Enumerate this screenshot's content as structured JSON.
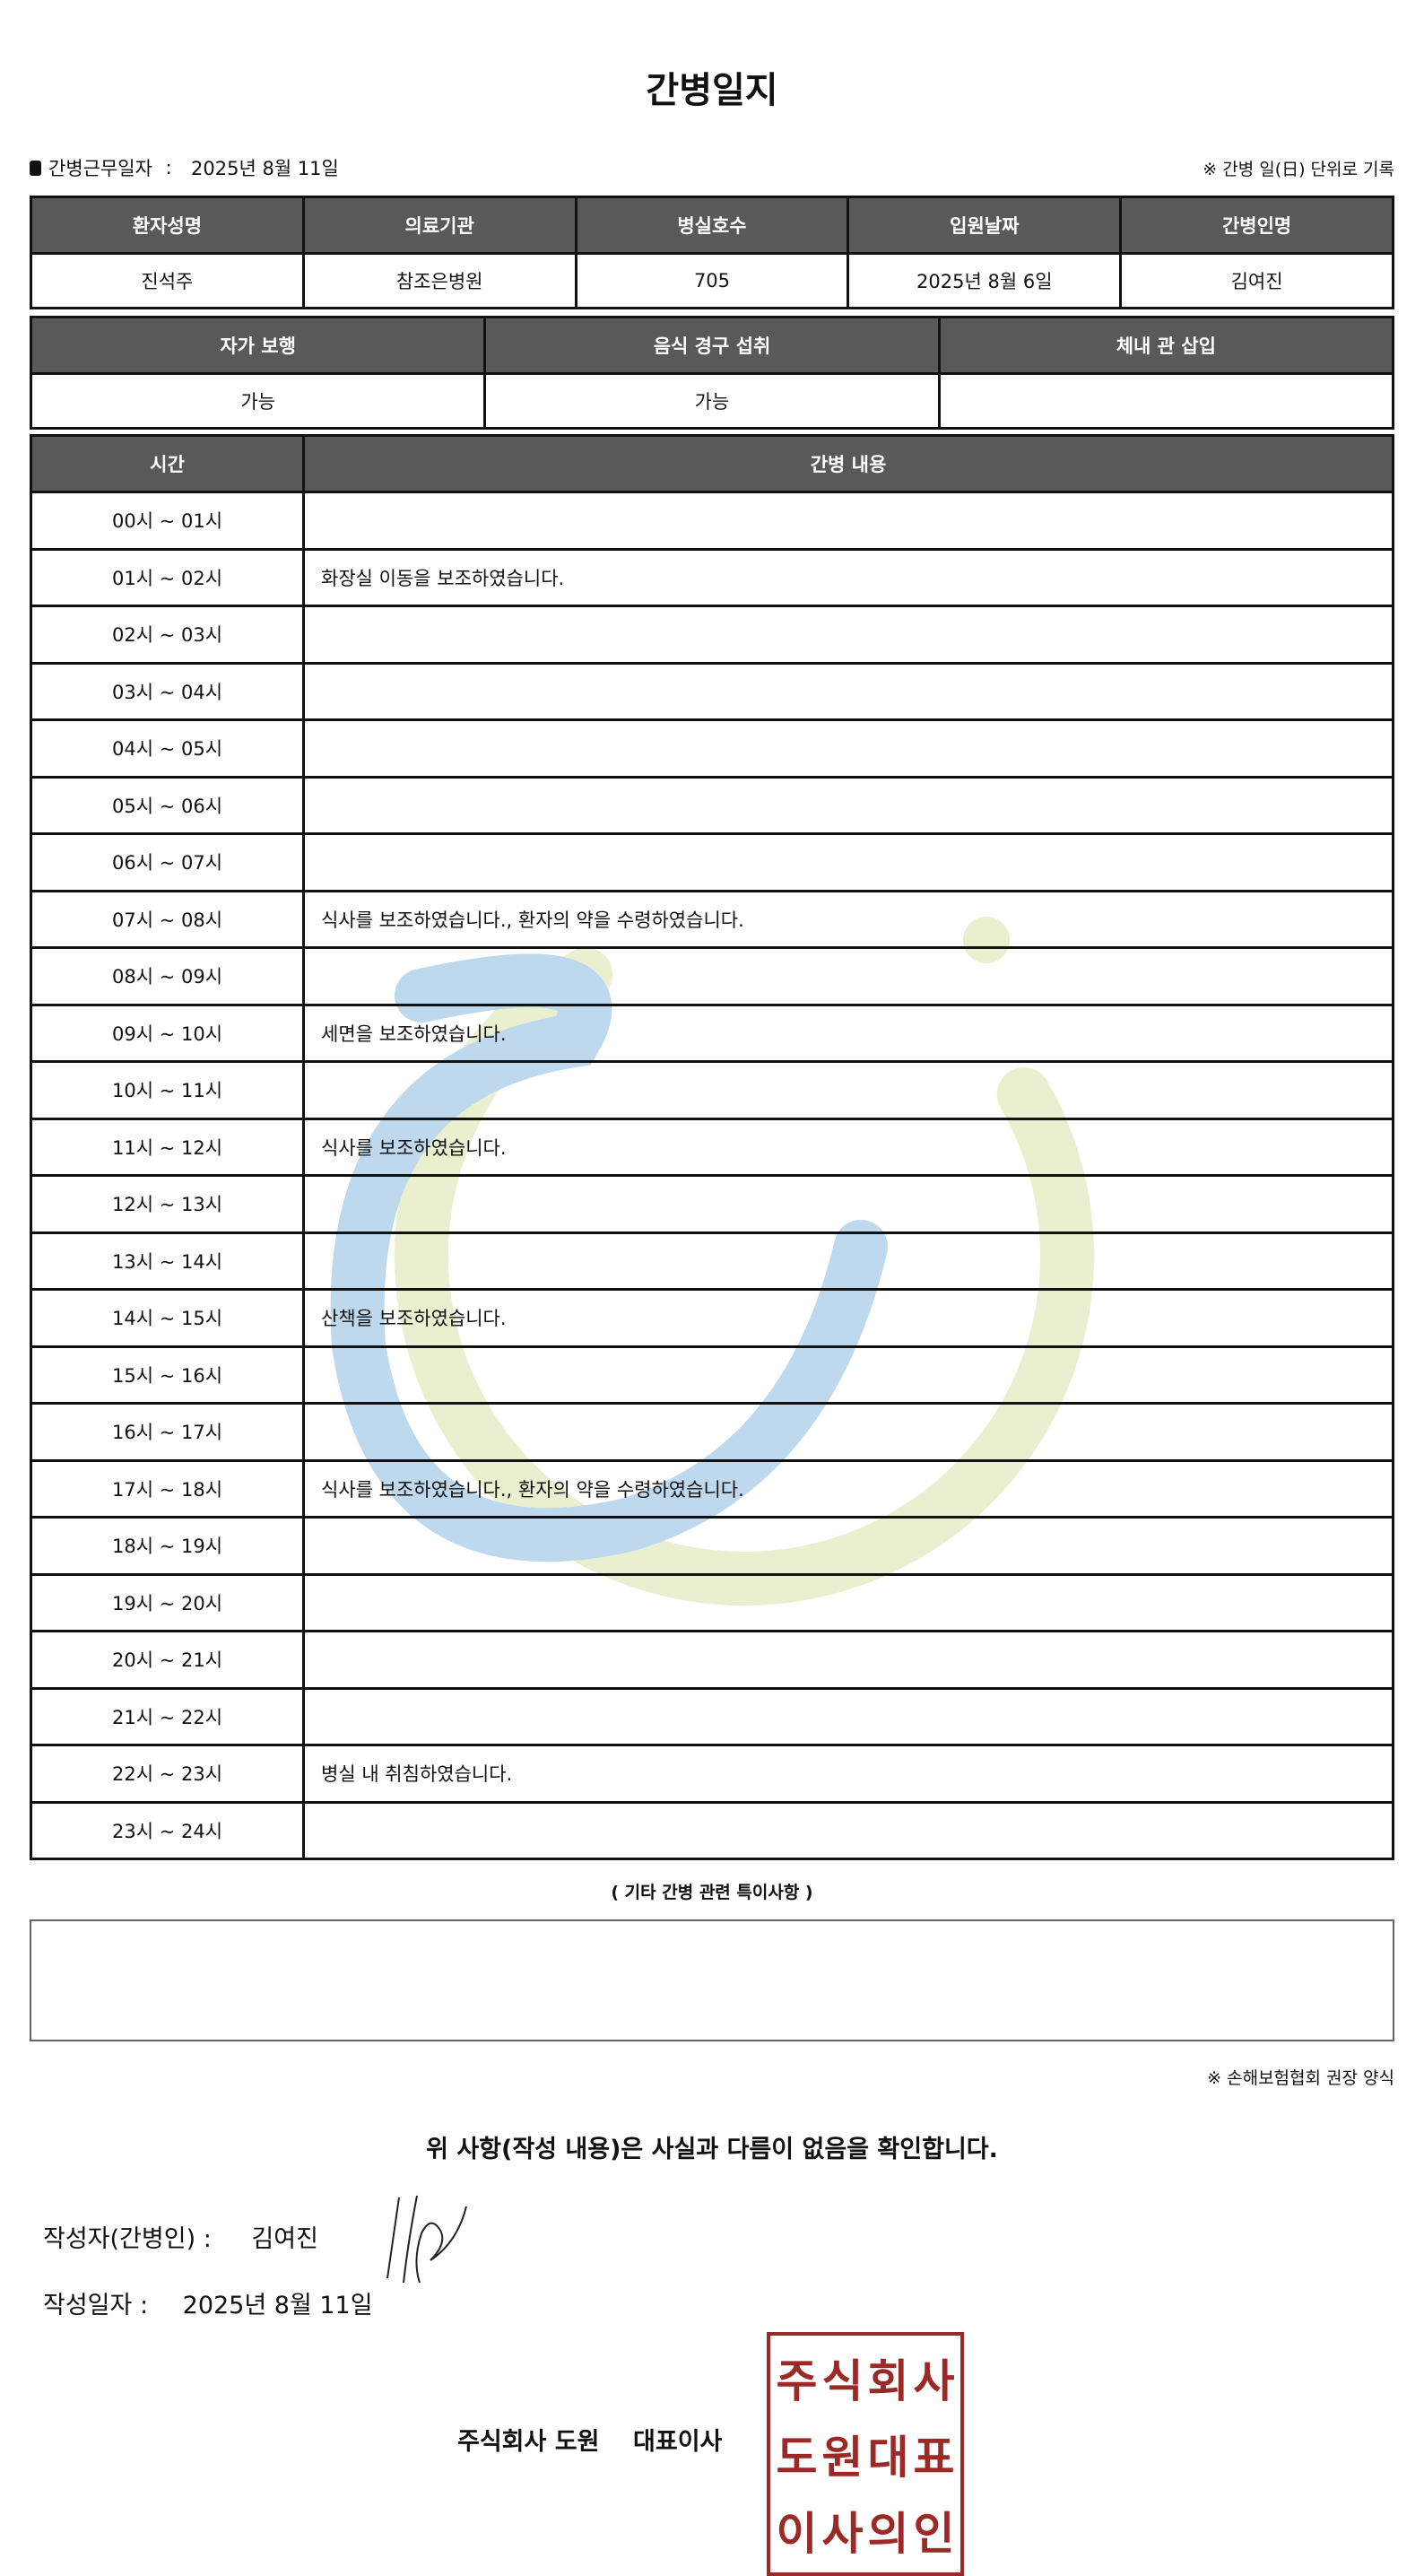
{
  "title": "간병일지",
  "work_date_label": "간병근무일자",
  "work_date": "2025년 8월 11일",
  "record_note": "※ 간병 일(日) 단위로 기록",
  "patient_table": {
    "headers": [
      "환자성명",
      "의료기관",
      "병실호수",
      "입원날짜",
      "간병인명"
    ],
    "values": [
      "진석주",
      "참조은병원",
      "705",
      "2025년 8월 6일",
      "김여진"
    ]
  },
  "status_table": {
    "headers": [
      "자가 보행",
      "음식 경구 섭취",
      "체내 관 삽입"
    ],
    "values": [
      "가능",
      "가능",
      ""
    ]
  },
  "log_table": {
    "headers": [
      "시간",
      "간병 내용"
    ],
    "rows": [
      {
        "time": "00시 ~ 01시",
        "content": ""
      },
      {
        "time": "01시 ~ 02시",
        "content": "화장실 이동을 보조하였습니다."
      },
      {
        "time": "02시 ~ 03시",
        "content": ""
      },
      {
        "time": "03시 ~ 04시",
        "content": ""
      },
      {
        "time": "04시 ~ 05시",
        "content": ""
      },
      {
        "time": "05시 ~ 06시",
        "content": ""
      },
      {
        "time": "06시 ~ 07시",
        "content": ""
      },
      {
        "time": "07시 ~ 08시",
        "content": "식사를 보조하였습니다., 환자의 약을 수령하였습니다."
      },
      {
        "time": "08시 ~ 09시",
        "content": ""
      },
      {
        "time": "09시 ~ 10시",
        "content": "세면을 보조하였습니다."
      },
      {
        "time": "10시 ~ 11시",
        "content": ""
      },
      {
        "time": "11시 ~ 12시",
        "content": "식사를 보조하였습니다."
      },
      {
        "time": "12시 ~ 13시",
        "content": ""
      },
      {
        "time": "13시 ~ 14시",
        "content": ""
      },
      {
        "time": "14시 ~ 15시",
        "content": "산책을 보조하였습니다."
      },
      {
        "time": "15시 ~ 16시",
        "content": ""
      },
      {
        "time": "16시 ~ 17시",
        "content": ""
      },
      {
        "time": "17시 ~ 18시",
        "content": "식사를 보조하였습니다., 환자의 약을 수령하였습니다."
      },
      {
        "time": "18시 ~ 19시",
        "content": ""
      },
      {
        "time": "19시 ~ 20시",
        "content": ""
      },
      {
        "time": "20시 ~ 21시",
        "content": ""
      },
      {
        "time": "21시 ~ 22시",
        "content": ""
      },
      {
        "time": "22시 ~ 23시",
        "content": "병실 내 취침하였습니다."
      },
      {
        "time": "23시 ~ 24시",
        "content": ""
      }
    ]
  },
  "notes_heading": "( 기타 간병 관련 특이사항 )",
  "notes_value": "",
  "reference_note": "※ 손해보험협회 권장 양식",
  "confirm_statement": "위 사항(작성 내용)은 사실과 다름이 없음을 확인합니다.",
  "writer_label": "작성자(간병인) :",
  "writer_name": "김여진",
  "written_date_label": "작성일자 :",
  "written_date": "2025년 8월 11일",
  "company": "주식회사 도원    대표이사",
  "seal_text": "주식회사도원대표이사의인",
  "colors": {
    "header_bg": "#595959",
    "seal": "#9b2a27",
    "watermark_blue": "#a9cce8",
    "watermark_green": "#e3ecc0"
  }
}
